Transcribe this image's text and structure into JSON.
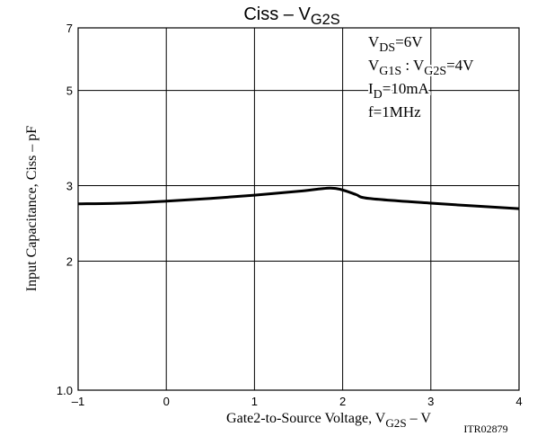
{
  "chart_data": {
    "type": "line",
    "title": [
      {
        "t": "Ciss  –  V"
      },
      {
        "t": "G2S",
        "sub": true
      }
    ],
    "xlabel": [
      {
        "t": "Gate2-to-Source Voltage, V"
      },
      {
        "t": "G2S",
        "sub": true
      },
      {
        "t": "  –  V"
      }
    ],
    "ylabel": "Input Capacitance, Ciss  –  pF",
    "code": "ITR02879",
    "annotations": [
      [
        {
          "t": "V"
        },
        {
          "t": "DS",
          "sub": true
        },
        {
          "t": "=6V"
        }
      ],
      [
        {
          "t": "V"
        },
        {
          "t": "G1S",
          "sub": true
        },
        {
          "t": " : V"
        },
        {
          "t": "G2S",
          "sub": true
        },
        {
          "t": "=4V"
        }
      ],
      [
        {
          "t": "I"
        },
        {
          "t": "D",
          "sub": true
        },
        {
          "t": "=10mA"
        }
      ],
      [
        {
          "t": "f=1MHz"
        }
      ]
    ],
    "x": [
      -1,
      -0.5,
      0,
      0.5,
      1,
      1.5,
      1.85,
      2.0,
      2.15,
      2.3,
      3,
      4
    ],
    "series": [
      {
        "color": "#000000",
        "values": [
          2.72,
          2.73,
          2.76,
          2.8,
          2.85,
          2.91,
          2.96,
          2.93,
          2.86,
          2.8,
          2.73,
          2.65
        ]
      }
    ],
    "xlim": [
      -1,
      4
    ],
    "xticks": [
      {
        "value": -1,
        "label": "–1"
      },
      0,
      1,
      2,
      3,
      4
    ],
    "ylim": [
      1,
      7
    ],
    "yticks": [
      {
        "value": 1,
        "label": "1.0"
      },
      2,
      3,
      5,
      7
    ],
    "ylog": true,
    "grid": true
  }
}
